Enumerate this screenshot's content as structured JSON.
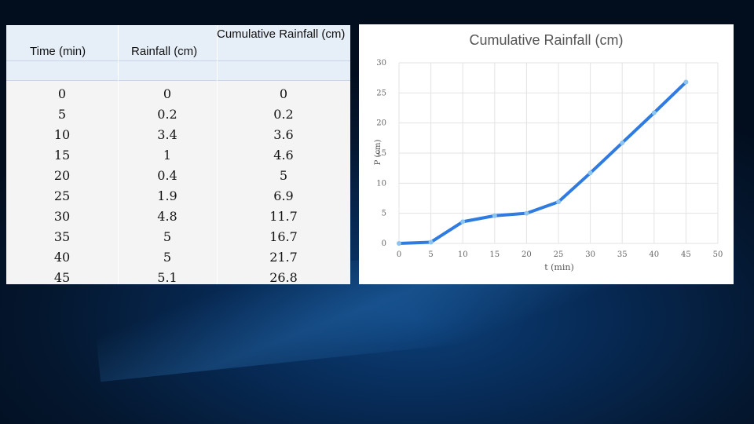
{
  "table": {
    "headers": [
      "Time (min)",
      "Rainfall (cm)",
      "Cumulative Rainfall (cm)"
    ],
    "rows": [
      [
        "0",
        "0",
        "0"
      ],
      [
        "5",
        "0.2",
        "0.2"
      ],
      [
        "10",
        "3.4",
        "3.6"
      ],
      [
        "15",
        "1",
        "4.6"
      ],
      [
        "20",
        "0.4",
        "5"
      ],
      [
        "25",
        "1.9",
        "6.9"
      ],
      [
        "30",
        "4.8",
        "11.7"
      ],
      [
        "35",
        "5",
        "16.7"
      ],
      [
        "40",
        "5",
        "21.7"
      ],
      [
        "45",
        "5.1",
        "26.8"
      ]
    ]
  },
  "chart_data": {
    "type": "line",
    "title": "Cumulative Rainfall (cm)",
    "xlabel": "t (min)",
    "ylabel": "P (cm)",
    "x": [
      0,
      5,
      10,
      15,
      20,
      25,
      30,
      35,
      40,
      45
    ],
    "series": [
      {
        "name": "Cumulative Rainfall (cm)",
        "values": [
          0,
          0.2,
          3.6,
          4.6,
          5,
          6.9,
          11.7,
          16.7,
          21.7,
          26.8
        ]
      }
    ],
    "xlim": [
      0,
      50
    ],
    "ylim": [
      0,
      30
    ],
    "xticks": [
      "0",
      "5",
      "10",
      "15",
      "20",
      "25",
      "30",
      "35",
      "40",
      "45",
      "50"
    ],
    "yticks": [
      "0",
      "5",
      "10",
      "15",
      "20",
      "25",
      "30"
    ],
    "grid": true,
    "line_color": "#2f7be0",
    "marker_color": "#8cc4f0"
  }
}
